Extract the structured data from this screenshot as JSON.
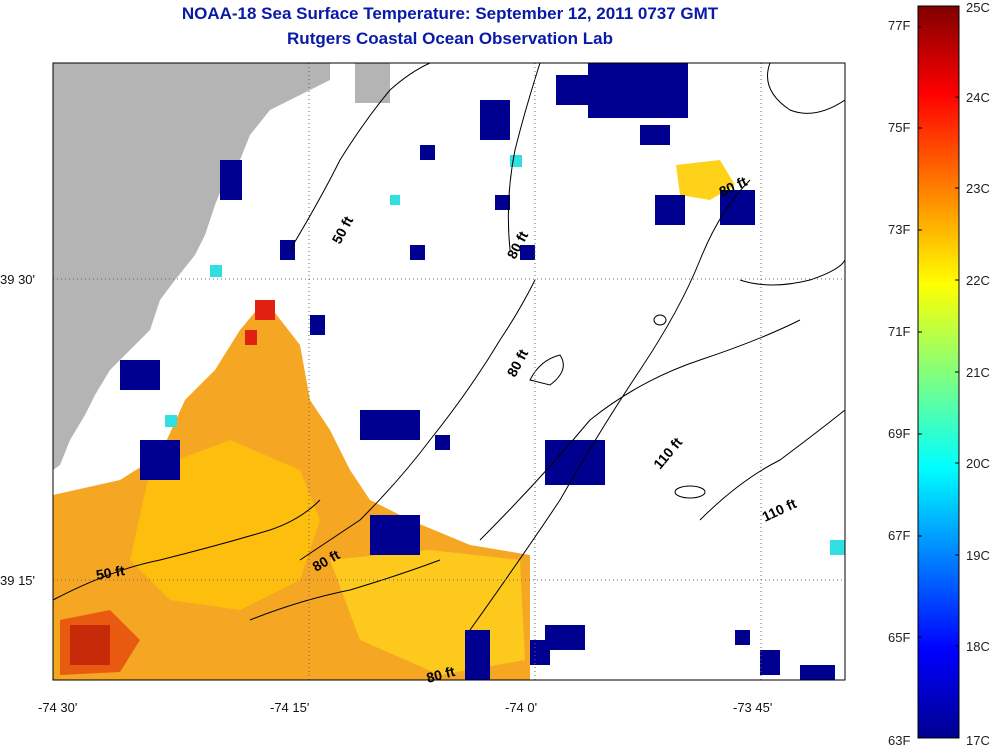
{
  "header": {
    "title": "NOAA-18 Sea Surface Temperature:  September 12, 2011 0737 GMT",
    "subtitle": "Rutgers Coastal Ocean Observation Lab"
  },
  "axes": {
    "x_ticks": [
      "-74 30'",
      "-74 15'",
      "-74 0'",
      "-73 45'"
    ],
    "y_ticks": [
      "39 30'",
      "39 15'"
    ]
  },
  "contour_labels": [
    "50 ft",
    "80 ft",
    "80 ft",
    "110 ft",
    "110 ft",
    "50 ft",
    "80 ft",
    "80 ft",
    "80 ft"
  ],
  "colorbar": {
    "fahrenheit": [
      "77F",
      "75F",
      "73F",
      "71F",
      "69F",
      "67F",
      "65F",
      "63F"
    ],
    "celsius": [
      "25C",
      "24C",
      "23C",
      "22C",
      "21C",
      "20C",
      "19C",
      "18C",
      "17C"
    ]
  },
  "colors": {
    "title": "#0a1aa8",
    "land": "#b4b4b4",
    "colormap": [
      "#00008f",
      "#0000ff",
      "#00ffff",
      "#ffff00",
      "#ff8000",
      "#ff0000",
      "#800000"
    ]
  }
}
